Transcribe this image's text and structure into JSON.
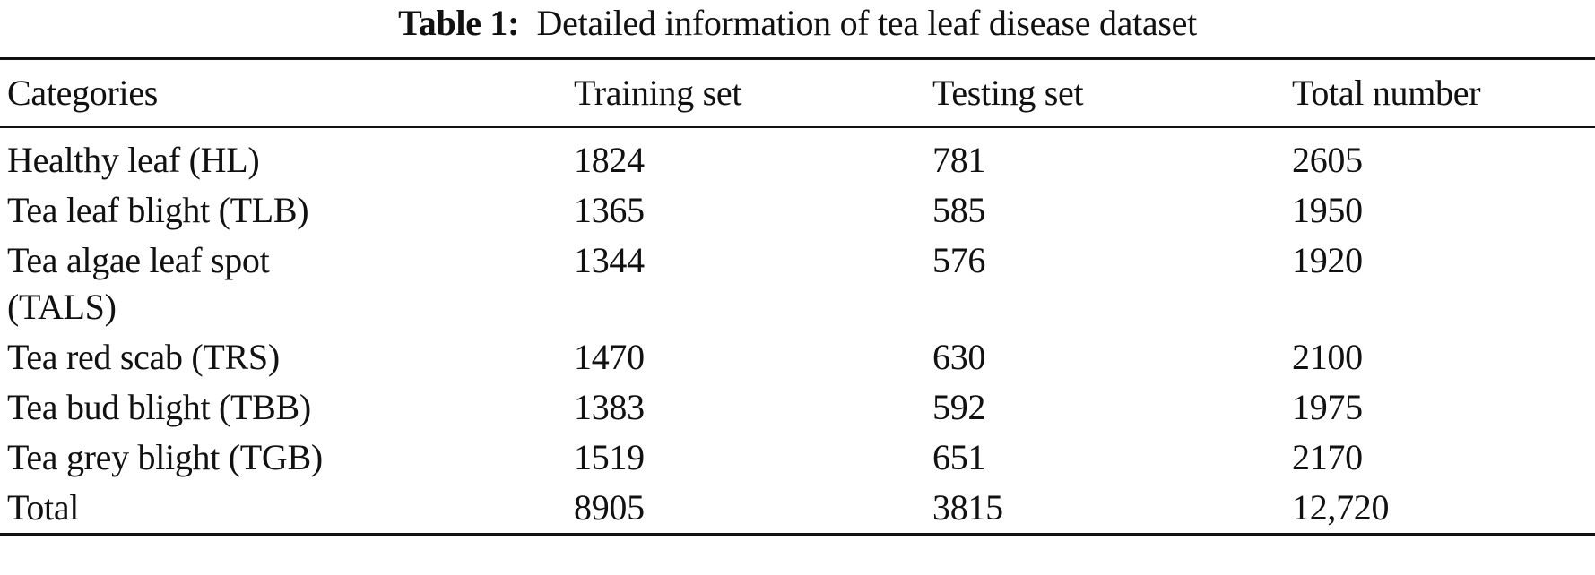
{
  "caption": {
    "label": "Table 1:",
    "text": "Detailed information of tea leaf disease dataset"
  },
  "table": {
    "headers": [
      "Categories",
      "Training set",
      "Testing set",
      "Total number"
    ],
    "rows": [
      {
        "category": "Healthy leaf (HL)",
        "training": "1824",
        "testing": "781",
        "total": "2605"
      },
      {
        "category": "Tea leaf blight (TLB)",
        "training": "1365",
        "testing": "585",
        "total": "1950"
      },
      {
        "category": "Tea algae leaf spot (TALS)",
        "training": "1344",
        "testing": "576",
        "total": "1920"
      },
      {
        "category": "Tea red scab (TRS)",
        "training": "1470",
        "testing": "630",
        "total": "2100"
      },
      {
        "category": "Tea bud blight (TBB)",
        "training": "1383",
        "testing": "592",
        "total": "1975"
      },
      {
        "category": "Tea grey blight (TGB)",
        "training": "1519",
        "testing": "651",
        "total": "2170"
      },
      {
        "category": "Total",
        "training": "8905",
        "testing": "3815",
        "total": "12,720"
      }
    ]
  },
  "chart_data": {
    "type": "table",
    "title": "Table 1: Detailed information of tea leaf disease dataset",
    "columns": [
      "Categories",
      "Training set",
      "Testing set",
      "Total number"
    ],
    "categories": [
      "Healthy leaf (HL)",
      "Tea leaf blight (TLB)",
      "Tea algae leaf spot (TALS)",
      "Tea red scab (TRS)",
      "Tea bud blight (TBB)",
      "Tea grey blight (TGB)",
      "Total"
    ],
    "series": [
      {
        "name": "Training set",
        "values": [
          1824,
          1365,
          1344,
          1470,
          1383,
          1519,
          8905
        ]
      },
      {
        "name": "Testing set",
        "values": [
          781,
          585,
          576,
          630,
          592,
          651,
          3815
        ]
      },
      {
        "name": "Total number",
        "values": [
          2605,
          1950,
          1920,
          2100,
          1975,
          2170,
          12720
        ]
      }
    ]
  }
}
